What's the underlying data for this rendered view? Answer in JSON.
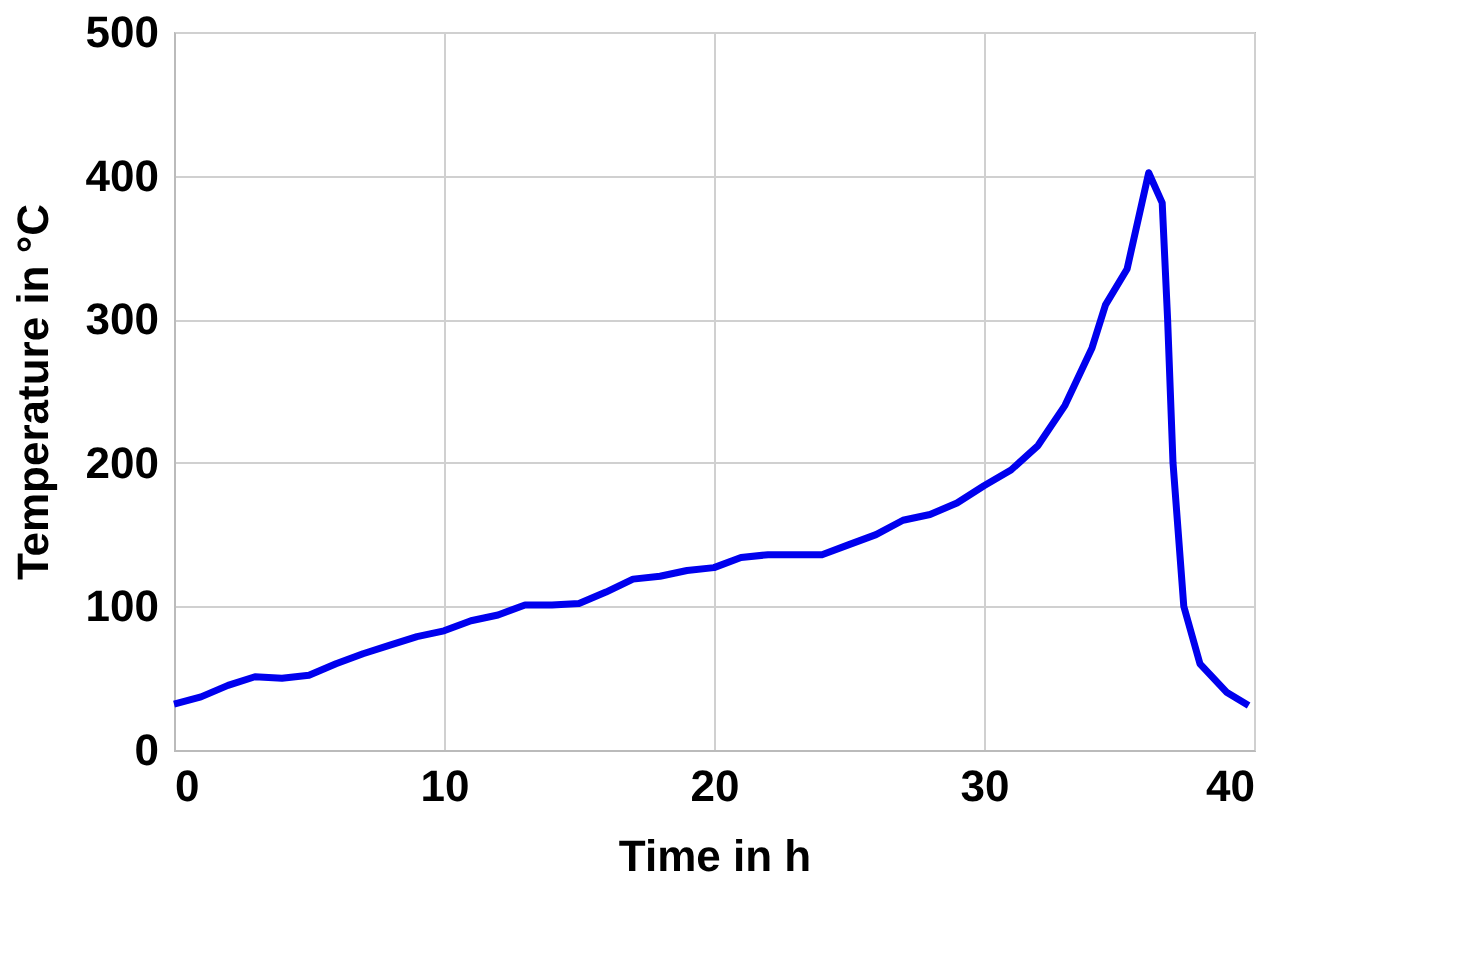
{
  "chart_data": {
    "type": "line",
    "xlabel": "Time in h",
    "ylabel": "Temperature in °C",
    "xlim": [
      0,
      40
    ],
    "xticks": [
      0,
      10,
      20,
      30,
      40
    ],
    "ylim": [
      0,
      500
    ],
    "yticks": [
      0,
      100,
      200,
      300,
      400,
      500
    ],
    "grid": true,
    "line_style": "solid",
    "marker": "none",
    "series": [
      {
        "color": "#0000ee",
        "x": [
          0,
          1,
          2,
          3,
          4,
          5,
          6,
          7,
          8,
          9,
          10,
          11,
          12,
          13,
          14,
          15,
          16,
          17,
          18,
          19,
          20,
          21,
          22,
          23,
          24,
          25,
          26,
          27,
          28,
          29,
          30,
          31,
          32,
          33,
          34,
          34.5,
          35.3,
          36.1,
          36.6,
          36.8,
          37.0,
          37.4,
          38,
          39,
          39.8
        ],
        "values": [
          32,
          37,
          45,
          51,
          50,
          52,
          60,
          67,
          73,
          79,
          83,
          90,
          94,
          101,
          101,
          102,
          110,
          119,
          121,
          125,
          127,
          134,
          136,
          136,
          136,
          143,
          150,
          160,
          164,
          172,
          184,
          195,
          212,
          240,
          280,
          310,
          335,
          402,
          381,
          300,
          200,
          100,
          60,
          40,
          31
        ]
      }
    ]
  }
}
